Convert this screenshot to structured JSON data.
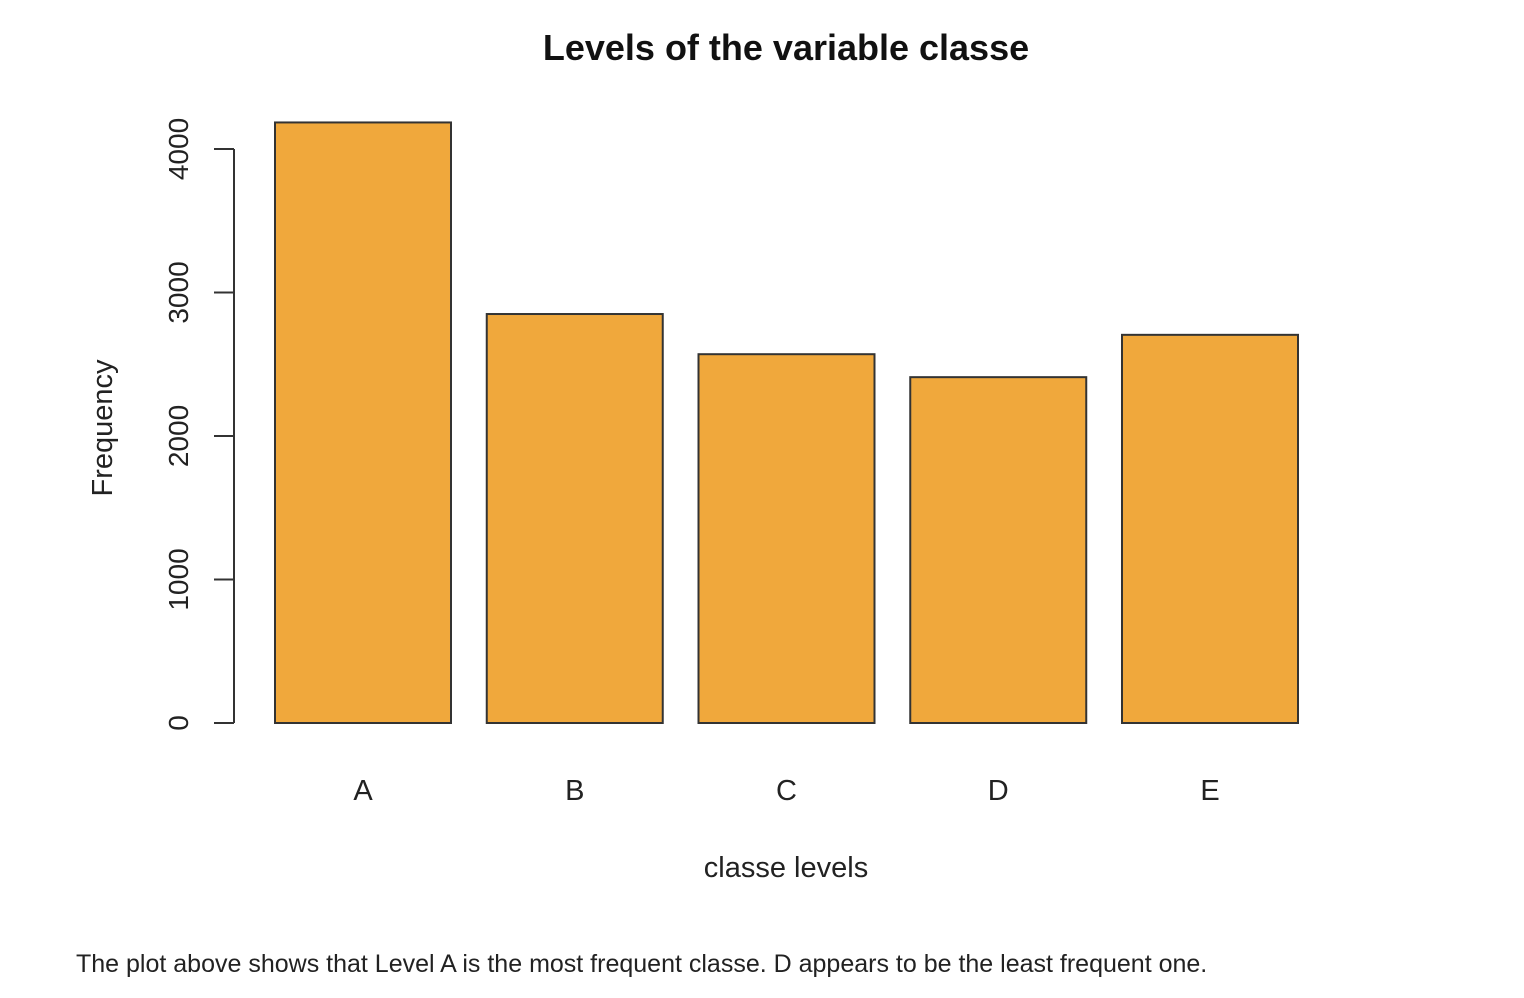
{
  "chart_data": {
    "type": "bar",
    "title": "Levels of the variable classe",
    "xlabel": "classe levels",
    "ylabel": "Frequency",
    "categories": [
      "A",
      "B",
      "C",
      "D",
      "E"
    ],
    "values": [
      4185,
      2850,
      2570,
      2410,
      2705
    ],
    "ylim": [
      0,
      4200
    ],
    "yticks": [
      0,
      1000,
      2000,
      3000,
      4000
    ],
    "grid": false,
    "bar_color": "#F0A83C",
    "bar_edge_color": "#333333"
  },
  "caption": "The plot above shows that Level A is the most frequent classe. D appears to be the least frequent one."
}
